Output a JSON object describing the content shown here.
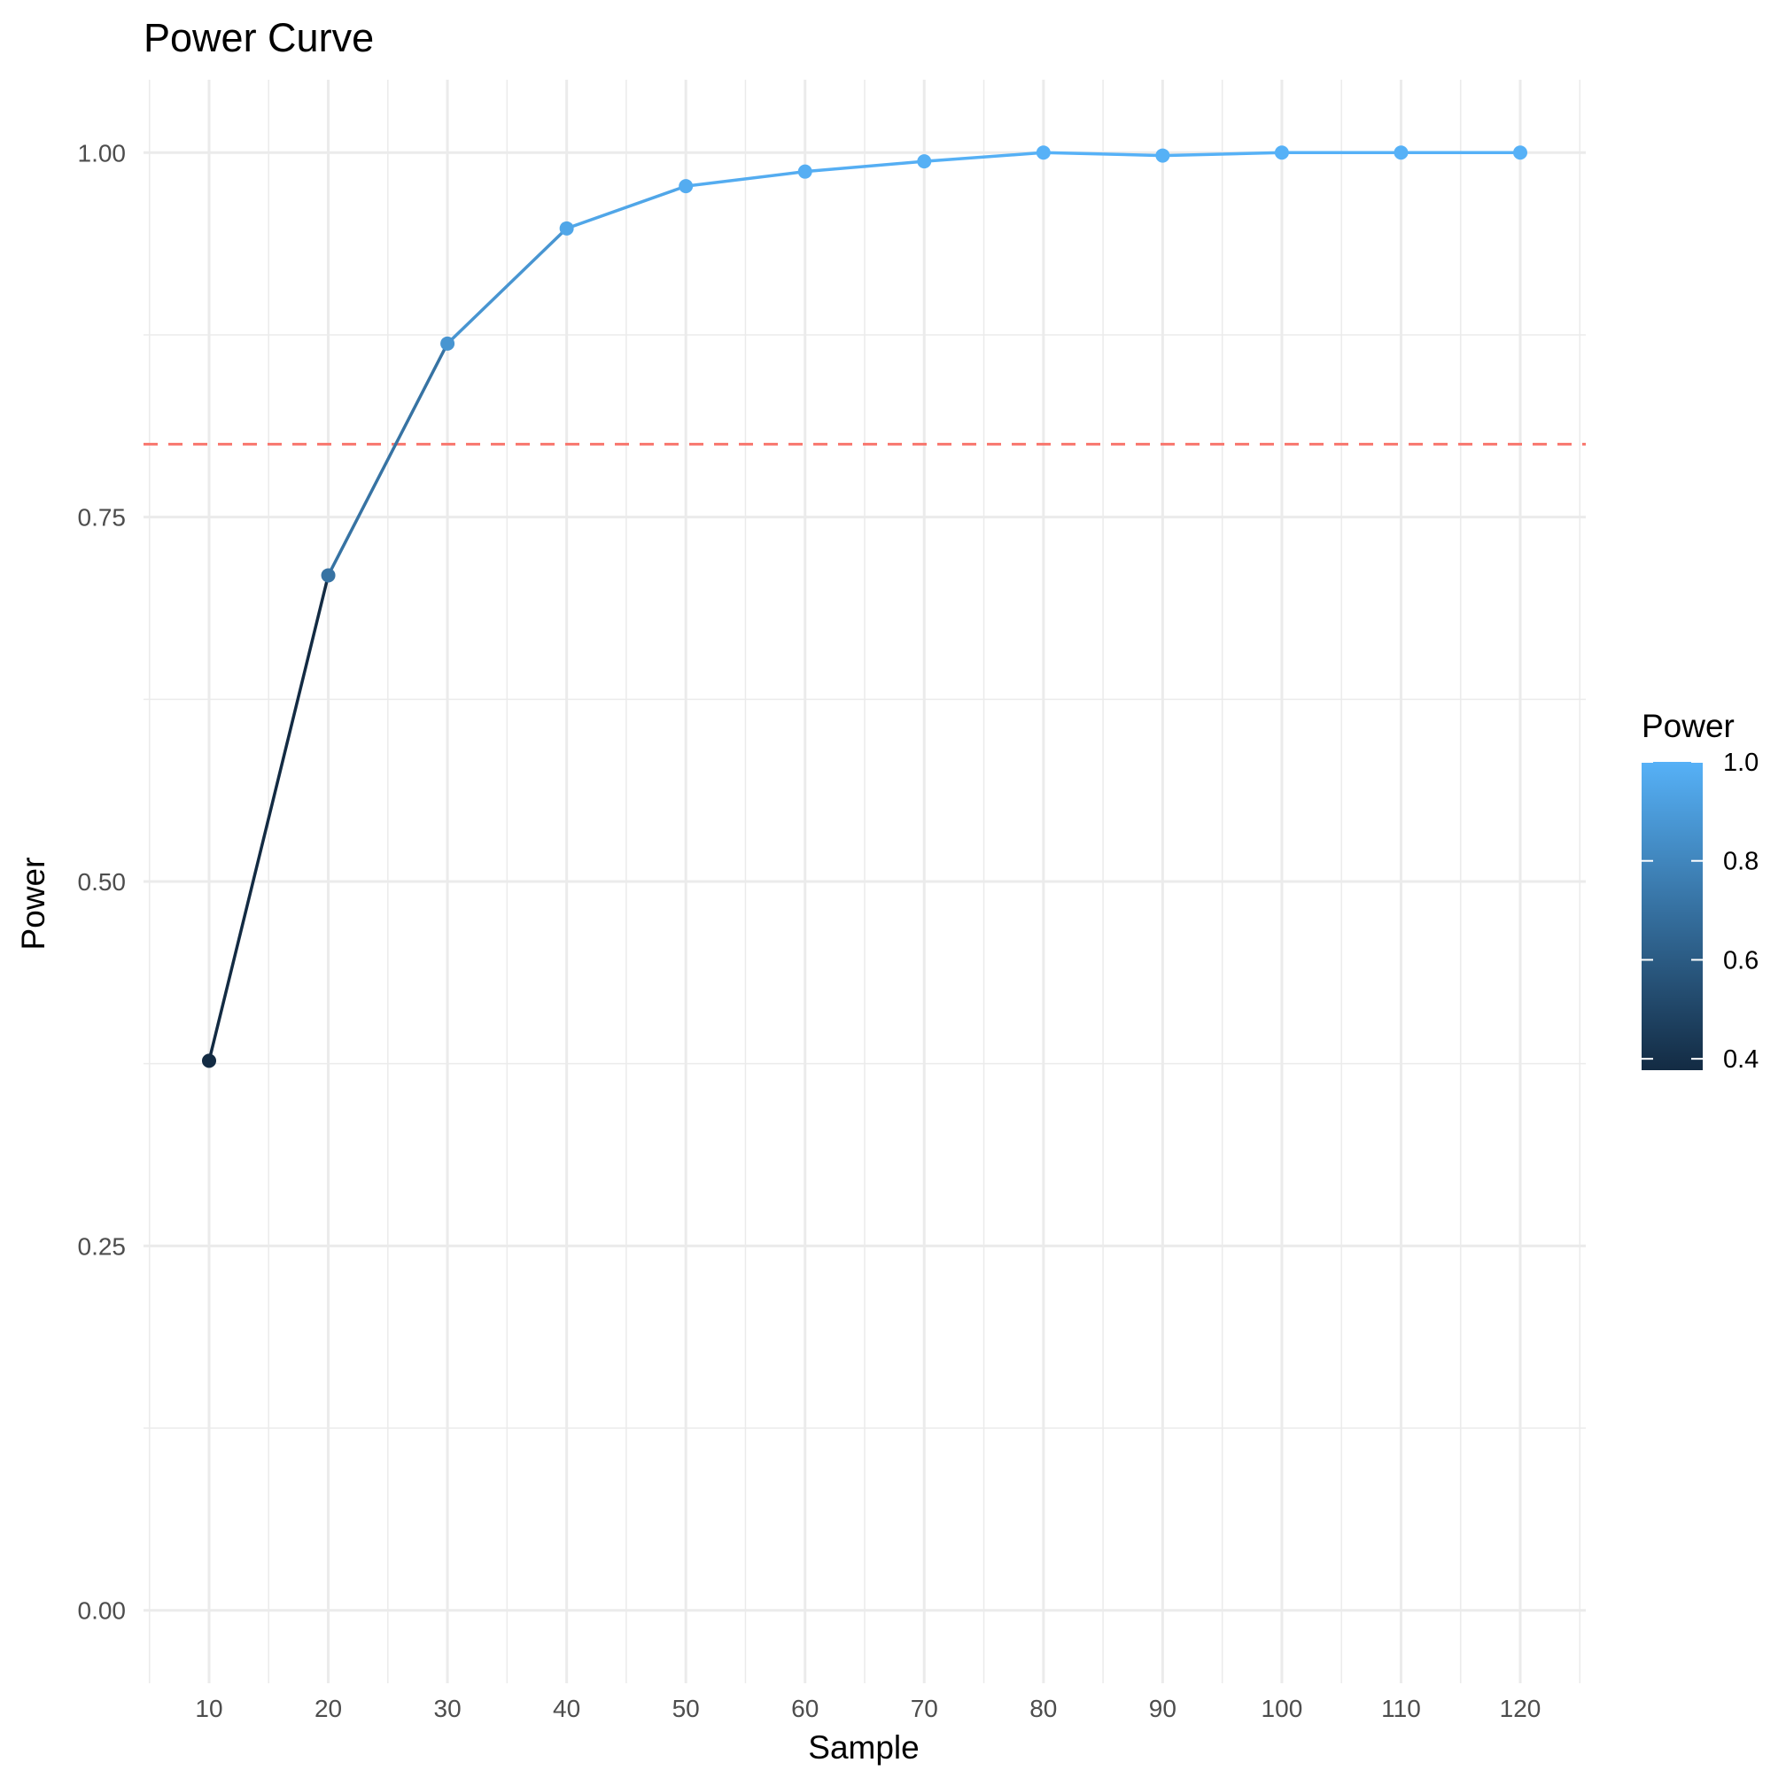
{
  "chart_data": {
    "type": "line",
    "title": "Power Curve",
    "xlabel": "Sample",
    "ylabel": "Power",
    "x": [
      10,
      20,
      30,
      40,
      50,
      60,
      70,
      80,
      90,
      100,
      110,
      120
    ],
    "series": [
      {
        "values": [
          0.377,
          0.71,
          0.869,
          0.948,
          0.977,
          0.987,
          0.994,
          1.0,
          0.998,
          1.0,
          1.0,
          1.0
        ]
      }
    ],
    "xlim": [
      4.5,
      125.5
    ],
    "ylim": [
      -0.05,
      1.05
    ],
    "x_ticks": [
      10,
      20,
      30,
      40,
      50,
      60,
      70,
      80,
      90,
      100,
      110,
      120
    ],
    "x_tick_labels": [
      "10",
      "20",
      "30",
      "40",
      "50",
      "60",
      "70",
      "80",
      "90",
      "100",
      "110",
      "120"
    ],
    "y_ticks": [
      0,
      0.25,
      0.5,
      0.75,
      1
    ],
    "y_tick_labels": [
      "0.00",
      "0.25",
      "0.50",
      "0.75",
      "1.00"
    ],
    "reference_line": {
      "y": 0.8,
      "style": "dashed",
      "color": "#F8766D"
    },
    "grid": true,
    "color_scale": {
      "title": "Power",
      "low_color": "#132B43",
      "high_color": "#56B1F7",
      "domain": [
        0.377,
        1.0
      ],
      "breaks": [
        0.4,
        0.6,
        0.8,
        1.0
      ],
      "break_labels": [
        "0.4",
        "0.6",
        "0.8",
        "1.0"
      ],
      "legend_position": "right"
    }
  }
}
